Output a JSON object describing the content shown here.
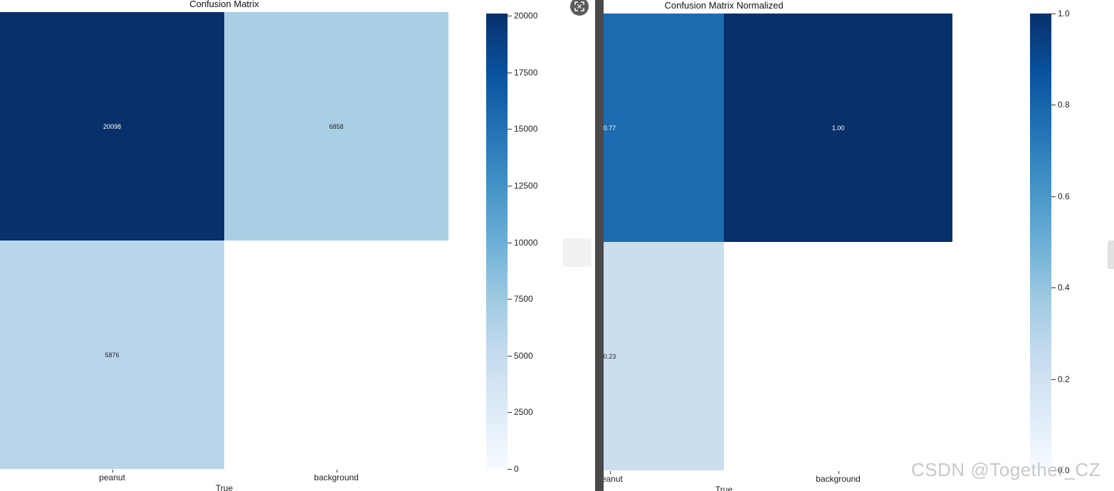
{
  "watermark": "CSDN @Together_CZ",
  "chart_data": [
    {
      "type": "heatmap",
      "title": "Confusion Matrix",
      "xlabel": "True",
      "ylabel": "",
      "x_categories": [
        "peanut",
        "background"
      ],
      "cells": [
        {
          "row": 0,
          "col": 0,
          "value": 20098,
          "label": "20098"
        },
        {
          "row": 0,
          "col": 1,
          "value": 6858,
          "label": "6858"
        },
        {
          "row": 1,
          "col": 0,
          "value": 5876,
          "label": "5876"
        }
      ],
      "colorbar": {
        "min": 0,
        "max": 20098,
        "ticks": [
          0,
          2500,
          5000,
          7500,
          10000,
          12500,
          15000,
          17500,
          20000
        ],
        "tick_labels": [
          "0",
          "2500",
          "5000",
          "7500",
          "10000",
          "12500",
          "15000",
          "17500",
          "20000"
        ]
      },
      "colormap": "Blues"
    },
    {
      "type": "heatmap",
      "title": "Confusion Matrix Normalized",
      "xlabel": "True",
      "ylabel": "",
      "x_categories": [
        "peanut",
        "background"
      ],
      "cells": [
        {
          "row": 0,
          "col": 0,
          "value": 0.77,
          "label": "0.77"
        },
        {
          "row": 0,
          "col": 1,
          "value": 1.0,
          "label": "1.00"
        },
        {
          "row": 1,
          "col": 0,
          "value": 0.23,
          "label": "0.23"
        }
      ],
      "colorbar": {
        "min": 0,
        "max": 1.0,
        "ticks": [
          0.0,
          0.2,
          0.4,
          0.6,
          0.8,
          1.0
        ],
        "tick_labels": [
          "0.0",
          "0.2",
          "0.4",
          "0.6",
          "0.8",
          "1.0"
        ]
      },
      "colormap": "Blues"
    }
  ]
}
